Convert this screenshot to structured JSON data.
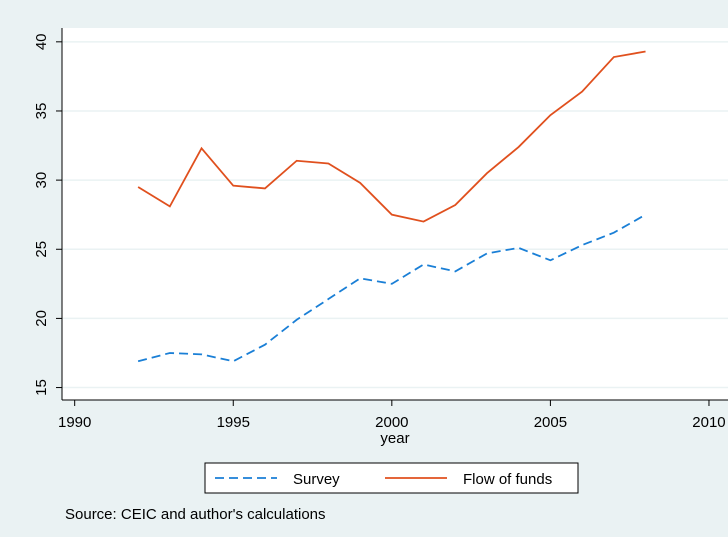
{
  "chart_data": {
    "type": "line",
    "x_label": "year",
    "note": "Source: CEIC and author's calculations",
    "x": [
      1992,
      1993,
      1994,
      1995,
      1996,
      1997,
      1998,
      1999,
      2000,
      2001,
      2002,
      2003,
      2004,
      2005,
      2006,
      2007,
      2008
    ],
    "series": [
      {
        "name": "Survey",
        "color": "#1a7fd6",
        "dash": true,
        "values": [
          16.9,
          17.5,
          17.4,
          16.9,
          18.1,
          19.9,
          21.4,
          22.9,
          22.5,
          23.9,
          23.4,
          24.7,
          25.1,
          24.2,
          25.3,
          26.2,
          27.5
        ]
      },
      {
        "name": "Flow of funds",
        "color": "#e0501e",
        "dash": false,
        "values": [
          29.5,
          28.1,
          32.3,
          29.6,
          29.4,
          31.4,
          31.2,
          29.8,
          27.5,
          27.0,
          28.2,
          30.5,
          32.4,
          34.7,
          36.4,
          38.9,
          39.3
        ]
      }
    ],
    "xlim": [
      1989.6,
      2010.6
    ],
    "xticks": [
      1990,
      1995,
      2000,
      2005,
      2010
    ],
    "ylim": [
      14.1,
      41.0
    ],
    "yticks": [
      15,
      20,
      25,
      30,
      35,
      40
    ],
    "grid": true
  }
}
